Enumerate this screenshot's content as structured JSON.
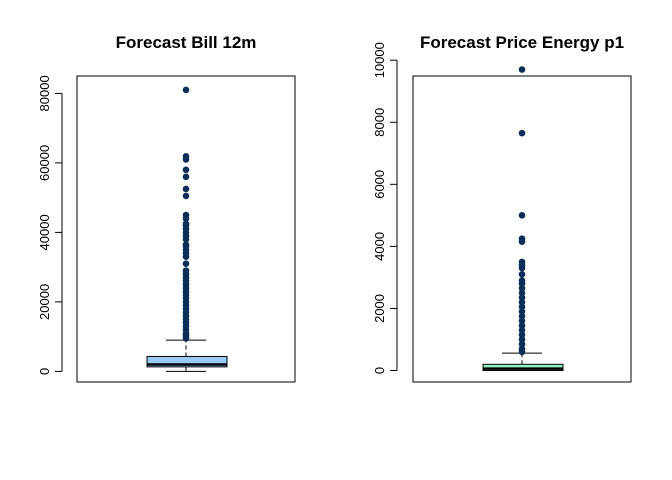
{
  "chart_data": [
    {
      "type": "boxplot",
      "title": "Forecast Bill 12m",
      "ylim": [
        0,
        82000
      ],
      "yticks": [
        0,
        20000,
        40000,
        60000,
        80000
      ],
      "tick_labels": [
        "0",
        "20000",
        "40000",
        "60000",
        "80000"
      ],
      "box": {
        "whisker_low": 0,
        "q1": 1300,
        "median": 2000,
        "q3": 4300,
        "whisker_high": 9000
      },
      "outliers": [
        81000,
        61900,
        61000,
        58000,
        56000,
        52500,
        50500,
        45000,
        44000,
        42500,
        42000,
        41000,
        40000,
        39000,
        38000,
        36500,
        36000,
        35000,
        34000,
        33000,
        31000,
        29000,
        28000,
        27000,
        26000,
        25000,
        24000,
        23000,
        22000,
        21000,
        20000,
        19000,
        18000,
        17000,
        16000,
        15000,
        14000,
        13000,
        12000,
        11000,
        10500,
        10000,
        9500
      ],
      "colors": {
        "box_fill": "#99c9f5",
        "point": "#0b2e57"
      }
    },
    {
      "type": "boxplot",
      "title": "Forecast Price Energy p1",
      "ylim": [
        0,
        10000
      ],
      "yticks": [
        0,
        2000,
        4000,
        6000,
        8000,
        10000
      ],
      "tick_labels": [
        "0",
        "2000",
        "4000",
        "6000",
        "8000",
        "10000"
      ],
      "box": {
        "whisker_low": 0,
        "q1": 0,
        "median": 60,
        "q3": 200,
        "whisker_high": 560
      },
      "outliers": [
        9700,
        7650,
        5000,
        4250,
        4150,
        3500,
        3400,
        3300,
        3100,
        2900,
        2800,
        2650,
        2500,
        2350,
        2200,
        2050,
        1900,
        1750,
        1600,
        1450,
        1300,
        1150,
        1000,
        850,
        700,
        600
      ],
      "colors": {
        "box_fill": "#8ff5c8",
        "point": "#0b2e57"
      }
    }
  ]
}
